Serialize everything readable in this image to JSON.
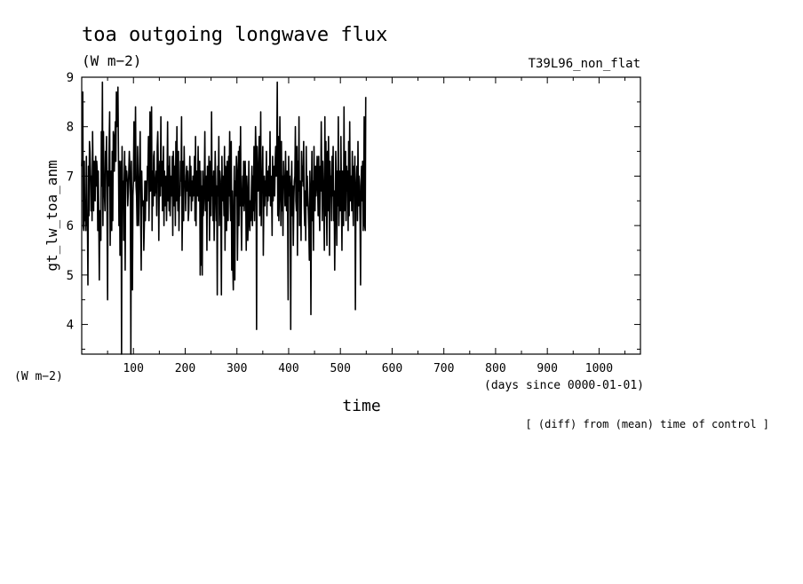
{
  "chart_data": {
    "type": "line",
    "title": "toa outgoing longwave flux",
    "subtitle": "(W m−2)",
    "experiment_label": "T39L96_non_flat",
    "ylabel": "gt_lw_toa_anm",
    "y_unit_label": "(W m−2)",
    "xlabel": "time",
    "x_unit_label": "(days since 0000-01-01)",
    "note": "[ (diff) from (mean) time of control ]",
    "xlim": [
      0,
      1080
    ],
    "ylim": [
      3.4,
      9.0
    ],
    "x_ticks": [
      100,
      200,
      300,
      400,
      500,
      600,
      700,
      800,
      900,
      1000
    ],
    "x_tick_labels": [
      "100",
      "200",
      "300",
      "400",
      "500",
      "600",
      "700",
      "800",
      "900",
      "1000"
    ],
    "y_ticks": [
      4,
      5,
      6,
      7,
      8,
      9
    ],
    "y_tick_labels": [
      "4",
      "5",
      "6",
      "7",
      "8",
      "9"
    ],
    "grid": false,
    "series": [
      {
        "x_start": 0,
        "x_step": 1,
        "values": [
          7.2,
          7.5,
          8.7,
          6.0,
          5.9,
          7.3,
          6.1,
          6.3,
          5.9,
          7.4,
          6.0,
          6.2,
          4.8,
          7.2,
          6.2,
          7.7,
          7.5,
          7.1,
          6.3,
          7.0,
          6.1,
          7.9,
          7.0,
          6.3,
          7.3,
          7.2,
          6.5,
          7.4,
          6.8,
          7.3,
          7.1,
          5.9,
          7.1,
          6.1,
          4.9,
          6.3,
          6.0,
          5.7,
          7.9,
          6.8,
          8.9,
          6.0,
          7.9,
          6.9,
          6.6,
          6.3,
          7.5,
          7.2,
          7.8,
          6.1,
          4.5,
          7.1,
          6.8,
          7.6,
          8.3,
          5.6,
          6.9,
          7.1,
          5.9,
          7.5,
          6.1,
          7.9,
          7.8,
          7.1,
          7.6,
          8.1,
          7.3,
          8.7,
          8.0,
          8.1,
          8.8,
          7.5,
          6.0,
          7.3,
          5.4,
          6.6,
          7.3,
          3.4,
          7.6,
          6.7,
          6.9,
          5.7,
          6.8,
          7.5,
          5.1,
          7.2,
          6.9,
          7.1,
          6.9,
          6.4,
          6.7,
          7.1,
          7.5,
          7.2,
          6.5,
          3.4,
          7.3,
          6.2,
          4.7,
          6.6,
          6.9,
          8.1,
          6.9,
          7.2,
          8.4,
          6.8,
          6.6,
          6.0,
          7.6,
          6.6,
          6.0,
          6.8,
          7.3,
          7.9,
          6.2,
          5.1,
          7.1,
          6.5,
          6.4,
          6.5,
          5.5,
          6.0,
          6.9,
          6.1,
          6.9,
          6.7,
          6.5,
          7.2,
          7.1,
          7.8,
          6.1,
          7.0,
          8.3,
          6.7,
          7.1,
          8.4,
          5.9,
          7.1,
          6.4,
          7.4,
          7.5,
          6.6,
          6.7,
          6.9,
          7.1,
          6.2,
          7.6,
          7.9,
          7.2,
          5.7,
          6.9,
          7.3,
          6.6,
          8.2,
          6.8,
          7.3,
          6.3,
          6.8,
          7.6,
          6.0,
          7.1,
          6.4,
          6.8,
          7.0,
          6.1,
          6.9,
          8.1,
          6.5,
          7.2,
          6.3,
          7.4,
          6.2,
          6.8,
          7.0,
          6.6,
          7.4,
          5.8,
          7.5,
          7.1,
          6.4,
          7.2,
          6.0,
          7.7,
          6.5,
          8.0,
          6.9,
          6.3,
          7.5,
          5.9,
          6.7,
          6.6,
          7.3,
          6.9,
          8.2,
          5.5,
          6.5,
          7.3,
          6.1,
          7.6,
          6.8,
          6.9,
          6.3,
          7.0,
          7.2,
          6.7,
          7.1,
          6.1,
          6.3,
          6.9,
          7.4,
          6.6,
          7.2,
          6.3,
          6.9,
          6.5,
          7.0,
          6.6,
          6.8,
          7.4,
          6.1,
          7.8,
          6.0,
          7.1,
          6.9,
          6.6,
          7.6,
          6.5,
          6.7,
          7.3,
          5.0,
          7.1,
          5.2,
          6.8,
          5.0,
          7.1,
          6.2,
          6.5,
          6.9,
          7.9,
          6.3,
          6.6,
          7.0,
          5.5,
          7.2,
          6.5,
          6.9,
          7.4,
          5.7,
          6.7,
          7.3,
          6.2,
          8.3,
          6.6,
          7.0,
          6.1,
          7.1,
          5.7,
          6.6,
          7.5,
          6.9,
          6.1,
          6.8,
          4.6,
          7.2,
          6.6,
          7.8,
          6.0,
          7.1,
          6.9,
          6.2,
          4.6,
          7.4,
          6.5,
          7.0,
          6.8,
          6.2,
          7.6,
          5.5,
          7.2,
          7.0,
          5.9,
          7.3,
          6.8,
          6.1,
          7.4,
          6.6,
          7.9,
          6.5,
          6.1,
          7.7,
          5.1,
          6.7,
          5.2,
          4.7,
          6.5,
          7.2,
          4.9,
          6.9,
          6.6,
          7.4,
          7.1,
          5.3,
          6.3,
          7.5,
          6.0,
          7.6,
          6.4,
          8.0,
          6.3,
          5.5,
          6.5,
          7.0,
          6.4,
          7.3,
          6.3,
          6.7,
          7.3,
          6.6,
          5.5,
          7.0,
          6.7,
          5.7,
          6.1,
          7.3,
          6.1,
          5.9,
          6.5,
          6.1,
          6.7,
          7.2,
          6.0,
          7.0,
          6.3,
          7.6,
          6.1,
          6.9,
          8.0,
          7.5,
          3.9,
          7.6,
          6.9,
          6.7,
          7.1,
          7.8,
          6.2,
          6.8,
          8.3,
          6.0,
          7.0,
          6.9,
          7.6,
          5.4,
          6.5,
          7.0,
          6.4,
          6.9,
          6.6,
          7.5,
          6.2,
          7.1,
          6.5,
          6.9,
          7.2,
          6.6,
          7.9,
          6.4,
          7.0,
          6.8,
          5.8,
          7.4,
          6.5,
          6.9,
          7.2,
          6.6,
          7.3,
          7.6,
          7.0,
          7.4,
          8.9,
          6.2,
          7.8,
          6.1,
          6.6,
          8.2,
          7.2,
          6.0,
          7.7,
          6.3,
          7.0,
          5.8,
          7.3,
          6.9,
          7.0,
          6.4,
          7.5,
          6.7,
          6.3,
          7.1,
          6.3,
          4.5,
          7.4,
          6.6,
          7.0,
          6.6,
          3.9,
          6.8,
          7.3,
          6.2,
          6.8,
          5.6,
          6.5,
          6.9,
          7.0,
          8.0,
          6.5,
          6.3,
          7.6,
          5.4,
          7.3,
          6.7,
          8.2,
          6.0,
          6.9,
          6.8,
          5.7,
          7.5,
          6.9,
          7.2,
          6.8,
          7.7,
          6.4,
          6.0,
          6.7,
          5.7,
          7.6,
          6.4,
          7.0,
          6.6,
          6.3,
          5.9,
          5.3,
          7.1,
          6.6,
          4.2,
          6.6,
          7.5,
          6.1,
          6.9,
          5.5,
          7.6,
          6.5,
          6.3,
          7.2,
          6.6,
          6.9,
          7.4,
          6.8,
          6.2,
          7.4,
          6.5,
          5.9,
          7.2,
          6.7,
          8.1,
          7.1,
          6.1,
          7.3,
          6.8,
          6.4,
          5.5,
          8.2,
          6.2,
          7.7,
          6.4,
          5.6,
          7.5,
          6.3,
          7.8,
          6.9,
          5.4,
          7.3,
          6.6,
          7.0,
          6.1,
          7.4,
          6.6,
          7.6,
          6.1,
          6.7,
          5.1,
          6.2,
          7.5,
          6.9,
          5.6,
          7.1,
          6.4,
          8.2,
          6.0,
          6.6,
          7.1,
          6.3,
          7.8,
          6.7,
          5.5,
          7.1,
          6.6,
          6.0,
          8.4,
          6.3,
          6.8,
          7.5,
          6.1,
          7.2,
          6.7,
          7.1,
          5.9,
          7.7,
          6.2,
          8.1,
          6.5,
          6.9,
          7.0,
          6.3,
          7.5,
          6.6,
          6.0,
          7.2,
          6.7,
          7.4,
          4.3,
          6.6,
          6.9,
          7.2,
          6.1,
          7.7,
          6.4,
          7.0,
          6.8,
          6.1,
          4.8,
          6.9,
          7.2,
          6.5,
          7.3,
          5.9,
          6.4,
          8.2,
          6.0,
          5.9,
          8.6
        ]
      }
    ]
  }
}
